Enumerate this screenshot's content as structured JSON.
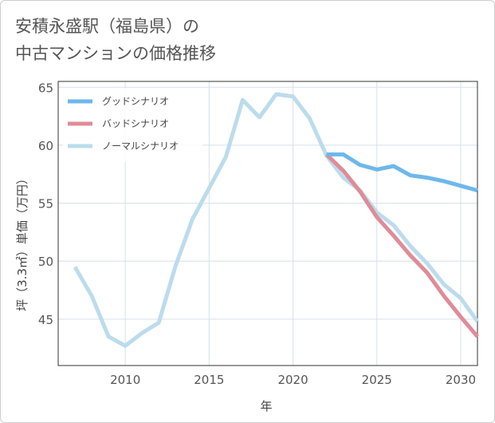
{
  "page": {
    "title_line1": "安積永盛駅（福島県）の",
    "title_line2": "中古マンションの価格推移"
  },
  "chart_data": {
    "type": "line",
    "title": "安積永盛駅（福島県）の中古マンションの価格推移",
    "xlabel": "年",
    "ylabel": "坪（3.3㎡）単価（万円）",
    "xlim": [
      2006,
      2031
    ],
    "ylim": [
      41,
      65.5
    ],
    "xticks": [
      2010,
      2015,
      2020,
      2025,
      2030
    ],
    "yticks": [
      45,
      50,
      55,
      60,
      65
    ],
    "grid": true,
    "legend_position": "top-left",
    "series": [
      {
        "name": "グッドシナリオ",
        "color": "#6db8ec",
        "x": [
          2022,
          2023,
          2024,
          2025,
          2026,
          2027,
          2028,
          2029,
          2030,
          2031
        ],
        "values": [
          59.2,
          59.2,
          58.3,
          57.9,
          58.2,
          57.4,
          57.2,
          56.9,
          56.5,
          56.1
        ]
      },
      {
        "name": "バッドシナリオ",
        "color": "#df8c98",
        "x": [
          2022,
          2023,
          2024,
          2025,
          2026,
          2027,
          2028,
          2029,
          2030,
          2031
        ],
        "values": [
          59.2,
          57.8,
          56.0,
          53.8,
          52.2,
          50.5,
          49.0,
          47.0,
          45.2,
          43.5
        ]
      },
      {
        "name": "ノーマルシナリオ",
        "color": "#bcdcec",
        "x": [
          2007,
          2008,
          2009,
          2010,
          2011,
          2012,
          2013,
          2014,
          2015,
          2016,
          2017,
          2018,
          2019,
          2020,
          2021,
          2022,
          2023,
          2024,
          2025,
          2026,
          2027,
          2028,
          2029,
          2030,
          2031
        ],
        "values": [
          49.5,
          47.0,
          43.5,
          42.7,
          43.8,
          44.7,
          49.6,
          53.6,
          56.3,
          59.0,
          63.9,
          62.4,
          64.4,
          64.2,
          62.3,
          59.1,
          57.2,
          56.1,
          54.2,
          53.1,
          51.3,
          49.8,
          48.0,
          46.8,
          44.8
        ]
      }
    ]
  }
}
